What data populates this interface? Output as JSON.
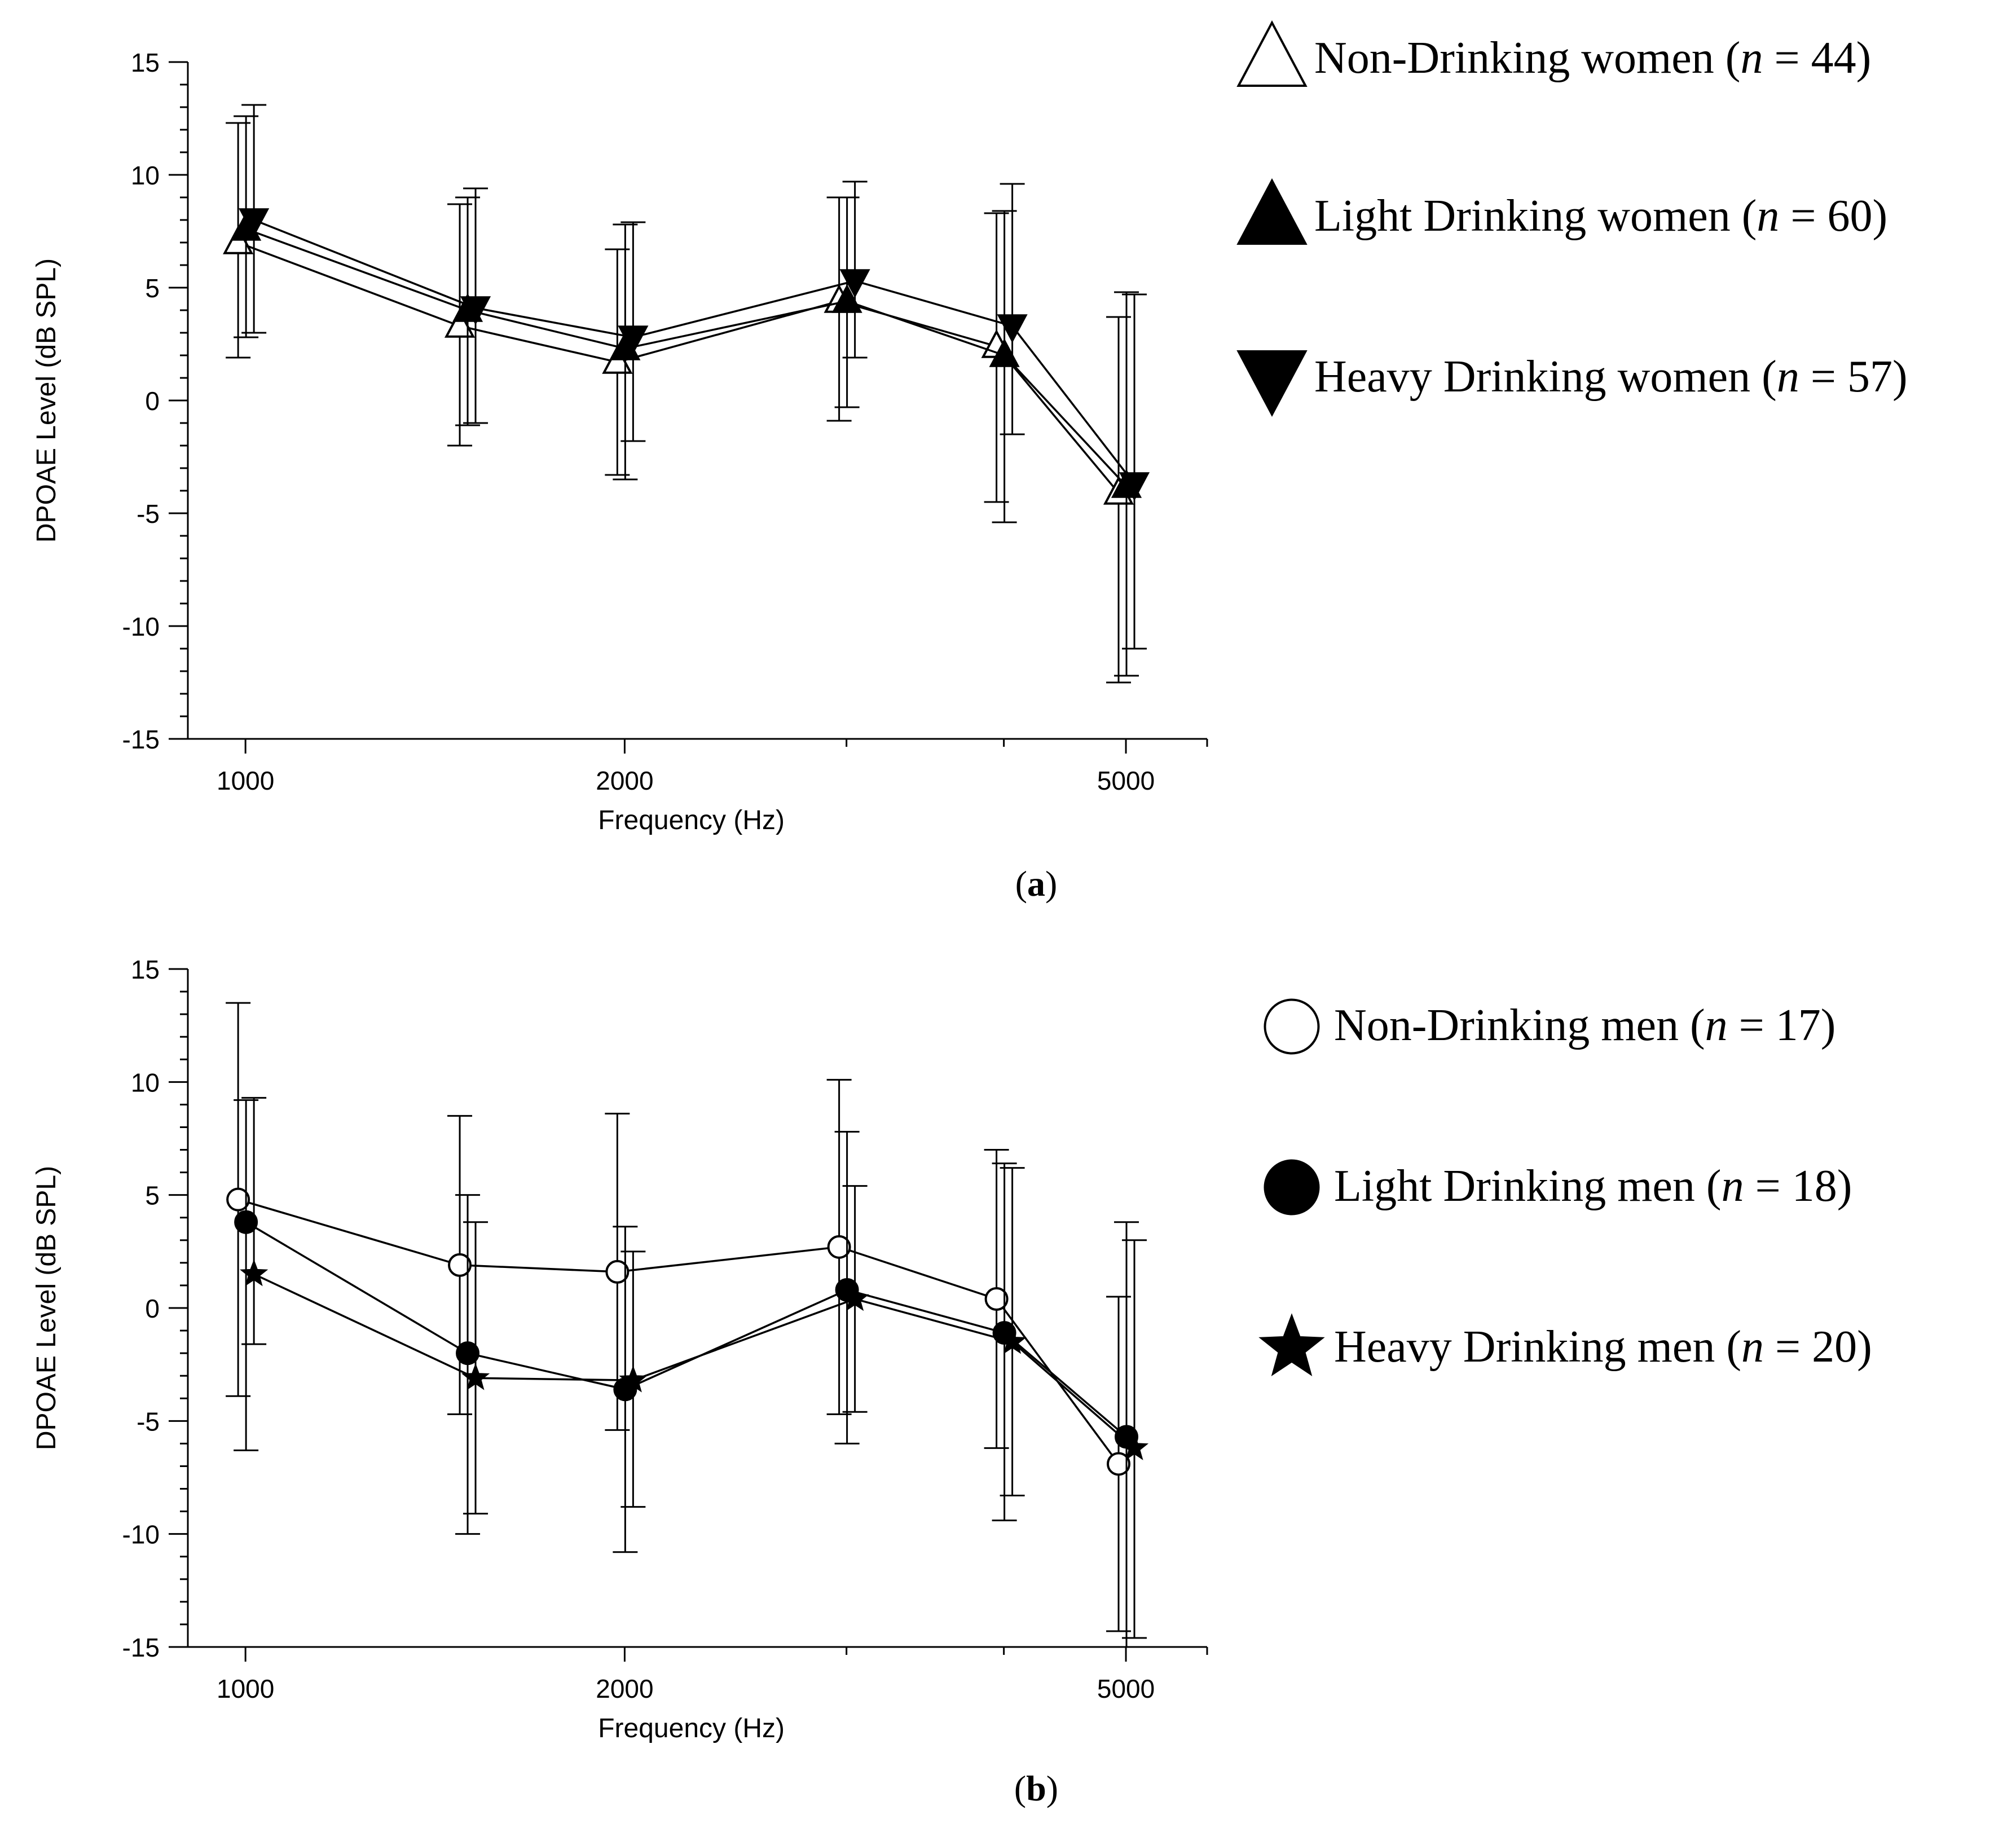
{
  "chart_data": [
    {
      "type": "line",
      "panel_label": "a",
      "title": "",
      "xlabel": "Frequency (Hz)",
      "ylabel": "DPOAE Level (dB SPL)",
      "xscale": "log",
      "xlim": [
        900,
        5800
      ],
      "ylim": [
        -15,
        15
      ],
      "x_ticks": [
        1000,
        2000,
        5000
      ],
      "y_ticks": [
        15,
        10,
        5,
        0,
        -5,
        -10,
        -15
      ],
      "x": [
        1001,
        1501,
        2002,
        3003,
        4004,
        5005
      ],
      "series": [
        {
          "name": "Non-Drinking women",
          "n": "44",
          "marker": "triangle-up-open",
          "values": [
            7.0,
            3.3,
            1.7,
            4.4,
            2.4,
            -4.1
          ],
          "err_low": [
            1.9,
            -2.0,
            -3.3,
            -0.9,
            -4.5,
            -12.5
          ],
          "err_high": [
            12.3,
            8.7,
            6.7,
            9.0,
            8.3,
            3.7
          ]
        },
        {
          "name": "Light Drinking women",
          "n": "60",
          "marker": "triangle-up-filled",
          "values": [
            7.6,
            4.0,
            2.3,
            4.4,
            2.0,
            -3.8
          ],
          "err_low": [
            2.8,
            -1.1,
            -3.5,
            -0.3,
            -5.4,
            -12.2
          ],
          "err_high": [
            12.6,
            9.0,
            7.8,
            9.0,
            8.4,
            4.8
          ]
        },
        {
          "name": "Heavy Drinking women",
          "n": "57",
          "marker": "triangle-down-filled",
          "values": [
            8.0,
            4.1,
            2.8,
            5.3,
            3.3,
            -3.7
          ],
          "err_low": [
            3.0,
            -1.0,
            -1.8,
            1.9,
            -1.5,
            -11.0
          ],
          "err_high": [
            13.1,
            9.4,
            7.9,
            9.7,
            9.6,
            4.7
          ]
        }
      ]
    },
    {
      "type": "line",
      "panel_label": "b",
      "title": "",
      "xlabel": "Frequency (Hz)",
      "ylabel": "DPOAE Level (dB SPL)",
      "xscale": "log",
      "xlim": [
        900,
        5800
      ],
      "ylim": [
        -15,
        15
      ],
      "x_ticks": [
        1000,
        2000,
        5000
      ],
      "y_ticks": [
        15,
        10,
        5,
        0,
        -5,
        -10,
        -15
      ],
      "x": [
        1001,
        1501,
        2002,
        3003,
        4004,
        5005
      ],
      "series": [
        {
          "name": "Non-Drinking men",
          "n": "17",
          "marker": "circle-open",
          "values": [
            4.8,
            1.9,
            1.6,
            2.7,
            0.4,
            -6.9
          ],
          "err_low": [
            -3.9,
            -4.7,
            -5.4,
            -4.7,
            -6.2,
            -14.3
          ],
          "err_high": [
            13.5,
            8.5,
            8.6,
            10.1,
            7.0,
            0.5
          ]
        },
        {
          "name": "Light Drinking men",
          "n": "18",
          "marker": "circle-filled",
          "values": [
            3.8,
            -2.0,
            -3.6,
            0.8,
            -1.1,
            -5.7
          ],
          "err_low": [
            -6.3,
            -10.0,
            -10.8,
            -6.0,
            -9.4,
            -15.0
          ],
          "err_high": [
            9.2,
            5.0,
            3.6,
            7.8,
            6.4,
            3.8
          ]
        },
        {
          "name": "Heavy Drinking men",
          "n": "20",
          "marker": "star-filled",
          "values": [
            1.5,
            -3.1,
            -3.2,
            0.4,
            -1.5,
            -6.2
          ],
          "err_low": [
            -1.6,
            -9.1,
            -8.8,
            -4.6,
            -8.3,
            -14.6
          ],
          "err_high": [
            9.3,
            3.8,
            2.5,
            5.4,
            6.2,
            3.0
          ]
        }
      ]
    }
  ]
}
